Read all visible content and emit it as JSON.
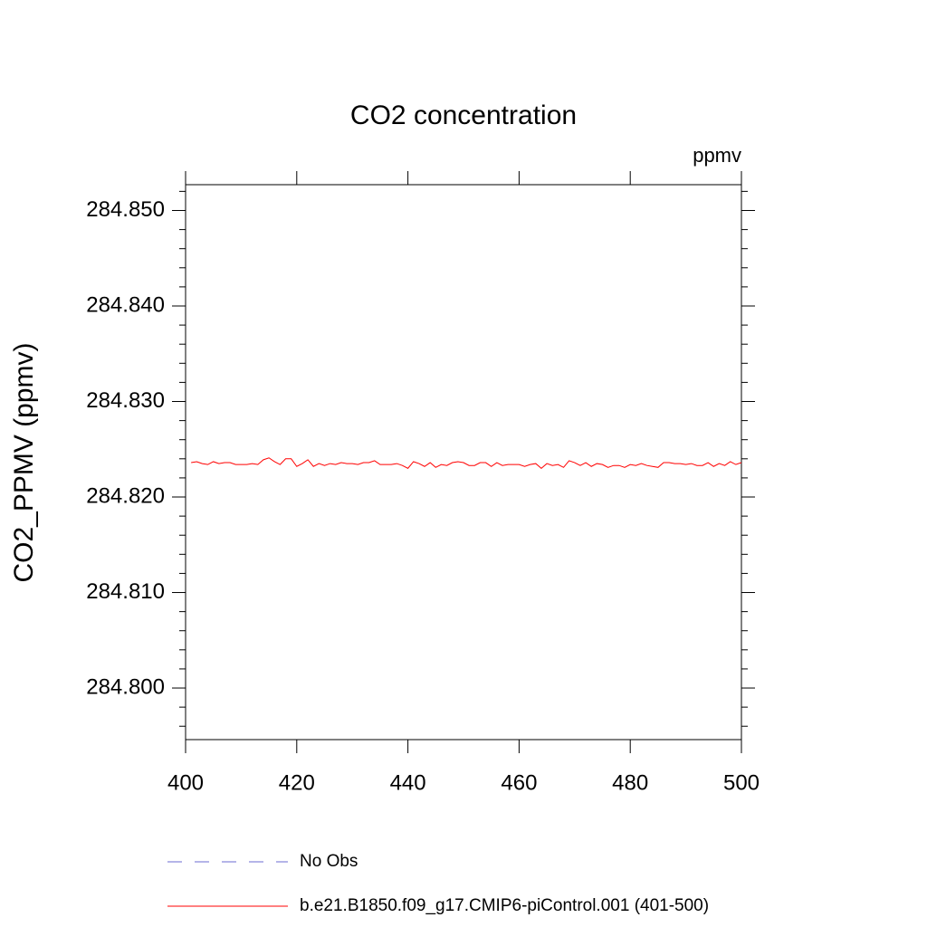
{
  "chart_data": {
    "type": "line",
    "title": "CO2 concentration",
    "subtitle": "ppmv",
    "ylabel": "CO2_PPMV  (ppmv)",
    "x": [
      401,
      402,
      403,
      404,
      405,
      406,
      407,
      408,
      409,
      410,
      411,
      412,
      413,
      414,
      415,
      416,
      417,
      418,
      419,
      420,
      421,
      422,
      423,
      424,
      425,
      426,
      427,
      428,
      429,
      430,
      431,
      432,
      433,
      434,
      435,
      436,
      437,
      438,
      439,
      440,
      441,
      442,
      443,
      444,
      445,
      446,
      447,
      448,
      449,
      450,
      451,
      452,
      453,
      454,
      455,
      456,
      457,
      458,
      459,
      460,
      461,
      462,
      463,
      464,
      465,
      466,
      467,
      468,
      469,
      470,
      471,
      472,
      473,
      474,
      475,
      476,
      477,
      478,
      479,
      480,
      481,
      482,
      483,
      484,
      485,
      486,
      487,
      488,
      489,
      490,
      491,
      492,
      493,
      494,
      495,
      496,
      497,
      498,
      499,
      500
    ],
    "series": [
      {
        "name": "No Obs",
        "color": "#6b6bd0",
        "dash": true,
        "values": [
          null,
          null,
          null,
          null,
          null,
          null,
          null,
          null,
          null,
          null,
          null,
          null,
          null,
          null,
          null,
          null,
          null,
          null,
          null,
          null,
          null,
          null,
          null,
          null,
          null,
          null,
          null,
          null,
          null,
          null,
          null,
          null,
          null,
          null,
          null,
          null,
          null,
          null,
          null,
          null,
          null,
          null,
          null,
          null,
          null,
          null,
          null,
          null,
          null,
          null,
          null,
          null,
          null,
          null,
          null,
          null,
          null,
          null,
          null,
          null,
          null,
          null,
          null,
          null,
          null,
          null,
          null,
          null,
          null,
          null,
          null,
          null,
          null,
          null,
          null,
          null,
          null,
          null,
          null,
          null,
          null,
          null,
          null,
          null,
          null,
          null,
          null,
          null,
          null,
          null,
          null,
          null,
          null,
          null,
          null,
          null,
          null,
          null,
          null,
          null
        ]
      },
      {
        "name": "b.e21.B1850.f09_g17.CMIP6-piControl.001 (401-500)",
        "color": "#ff0000",
        "dash": false,
        "values": [
          284.8236,
          284.8237,
          284.8235,
          284.8234,
          284.8237,
          284.8235,
          284.8236,
          284.8236,
          284.8234,
          284.8234,
          284.8234,
          284.8235,
          284.8234,
          284.8239,
          284.8241,
          284.8237,
          284.8234,
          284.824,
          284.824,
          284.8232,
          284.8235,
          284.8239,
          284.8232,
          284.8235,
          284.8233,
          284.8235,
          284.8234,
          284.8236,
          284.8235,
          284.8235,
          284.8234,
          284.8236,
          284.8236,
          284.8238,
          284.8234,
          284.8234,
          284.8234,
          284.8235,
          284.8233,
          284.823,
          284.8237,
          284.8235,
          284.8232,
          284.8236,
          284.8231,
          284.8234,
          284.8233,
          284.8236,
          284.8237,
          284.8236,
          284.8233,
          284.8233,
          284.8236,
          284.8236,
          284.8232,
          284.8236,
          284.8233,
          284.8234,
          284.8234,
          284.8234,
          284.8232,
          284.8234,
          284.8235,
          284.823,
          284.8235,
          284.8233,
          284.8234,
          284.8231,
          284.8238,
          284.8236,
          284.8233,
          284.8236,
          284.8232,
          284.8235,
          284.8234,
          284.8231,
          284.8233,
          284.8233,
          284.8231,
          284.8234,
          284.8233,
          284.8235,
          284.8233,
          284.8232,
          284.8231,
          284.8236,
          284.8236,
          284.8235,
          284.8235,
          284.8234,
          284.8235,
          284.8233,
          284.8233,
          284.8236,
          284.8232,
          284.8235,
          284.8233,
          284.8237,
          284.8234,
          284.8236
        ]
      }
    ],
    "xlim": [
      400,
      500
    ],
    "xticks": [
      400,
      420,
      440,
      460,
      480,
      500
    ],
    "ylim": [
      284.7946,
      284.8527
    ],
    "yticks": [
      {
        "value": 284.8,
        "label": "284.800"
      },
      {
        "value": 284.81,
        "label": "284.810"
      },
      {
        "value": 284.82,
        "label": "284.820"
      },
      {
        "value": 284.83,
        "label": "284.830"
      },
      {
        "value": 284.84,
        "label": "284.840"
      },
      {
        "value": 284.85,
        "label": "284.850"
      }
    ],
    "yminorticks": [
      284.796,
      284.798,
      284.802,
      284.804,
      284.806,
      284.808,
      284.812,
      284.814,
      284.816,
      284.818,
      284.822,
      284.824,
      284.826,
      284.828,
      284.832,
      284.834,
      284.836,
      284.838,
      284.842,
      284.844,
      284.846,
      284.848,
      284.852
    ],
    "grid": false
  }
}
